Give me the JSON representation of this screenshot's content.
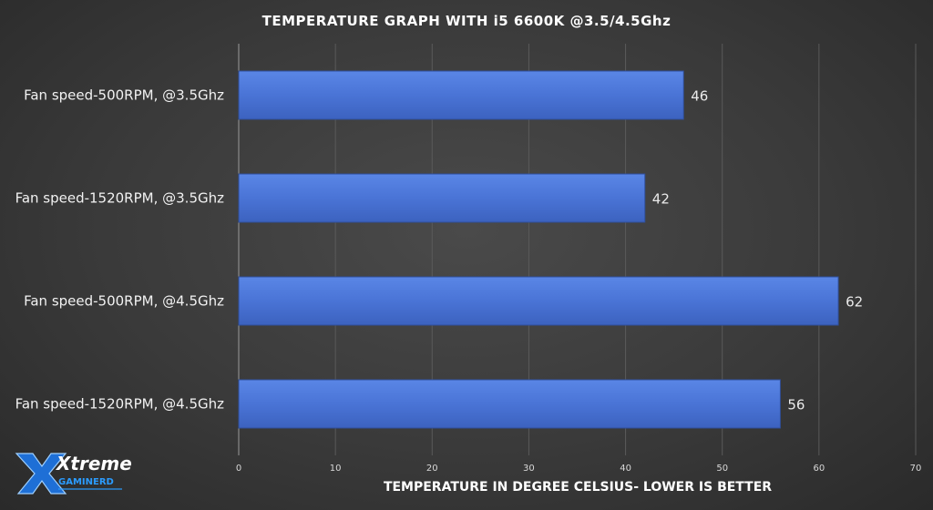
{
  "chart_data": {
    "type": "bar",
    "orientation": "horizontal",
    "title": "TEMPERATURE  GRAPH  WITH i5 6600K @3.5/4.5Ghz",
    "xlabel": "TEMPERATURE  IN DEGREE CELSIUS- LOWER IS BETTER",
    "ylabel": "",
    "categories": [
      "Fan speed-500RPM, @3.5Ghz",
      "Fan speed-1520RPM, @3.5Ghz",
      "Fan speed-500RPM, @4.5Ghz",
      "Fan speed-1520RPM, @4.5Ghz"
    ],
    "values": [
      46,
      42,
      62,
      56
    ],
    "xlim": [
      0,
      70
    ],
    "xticks": [
      0,
      10,
      20,
      30,
      40,
      50,
      60,
      70
    ],
    "grid": true,
    "legend": "none",
    "bar_color": "#4a74d6"
  },
  "logo": {
    "text_main": "Xtreme",
    "text_sub": "GAMINERD"
  }
}
